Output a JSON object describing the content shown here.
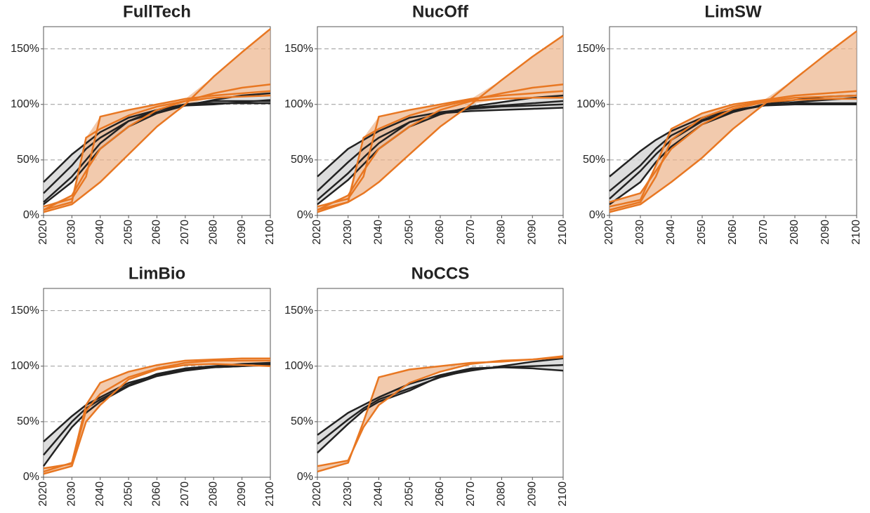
{
  "chart_data": [
    {
      "type": "line",
      "title": "FullTech",
      "x": [
        2020,
        2030,
        2035,
        2040,
        2050,
        2060,
        2070,
        2080,
        2090,
        2100
      ],
      "xlim": [
        2020,
        2100
      ],
      "xticks": [
        2020,
        2030,
        2040,
        2050,
        2060,
        2070,
        2080,
        2090,
        2100
      ],
      "ylim": [
        0,
        170
      ],
      "yticks": [
        {
          "value": 0,
          "label": "0%"
        },
        {
          "value": 50,
          "label": "50%"
        },
        {
          "value": 100,
          "label": "100%"
        },
        {
          "value": 150,
          "label": "150%"
        }
      ],
      "grid": true,
      "series": [
        {
          "color": "#222222",
          "values": [
            30,
            55,
            65,
            75,
            88,
            95,
            100,
            101,
            101,
            101
          ]
        },
        {
          "color": "#222222",
          "values": [
            20,
            45,
            60,
            70,
            85,
            93,
            99,
            100,
            102,
            104
          ]
        },
        {
          "color": "#222222",
          "values": [
            10,
            30,
            45,
            60,
            80,
            92,
            99,
            104,
            108,
            110
          ]
        },
        {
          "color": "#222222",
          "values": [
            12,
            35,
            50,
            65,
            85,
            95,
            100,
            103,
            103,
            103
          ]
        },
        {
          "color": "#e87722",
          "values": [
            5,
            12,
            70,
            78,
            90,
            98,
            103,
            110,
            115,
            118
          ]
        },
        {
          "color": "#e87722",
          "values": [
            8,
            15,
            35,
            89,
            95,
            100,
            105,
            108,
            110,
            112
          ]
        },
        {
          "color": "#e87722",
          "values": [
            3,
            10,
            20,
            30,
            55,
            80,
            100,
            125,
            147,
            168
          ]
        },
        {
          "color": "#e87722",
          "values": [
            5,
            18,
            40,
            60,
            80,
            95,
            103,
            106,
            107,
            108
          ]
        }
      ]
    },
    {
      "type": "line",
      "title": "NucOff",
      "x": [
        2020,
        2030,
        2035,
        2040,
        2050,
        2060,
        2070,
        2080,
        2090,
        2100
      ],
      "xlim": [
        2020,
        2100
      ],
      "xticks": [
        2020,
        2030,
        2040,
        2050,
        2060,
        2070,
        2080,
        2090,
        2100
      ],
      "ylim": [
        0,
        170
      ],
      "yticks": [
        {
          "value": 0,
          "label": "0%"
        },
        {
          "value": 50,
          "label": "50%"
        },
        {
          "value": 100,
          "label": "100%"
        },
        {
          "value": 150,
          "label": "150%"
        }
      ],
      "grid": true,
      "series": [
        {
          "color": "#222222",
          "values": [
            35,
            60,
            68,
            76,
            88,
            93,
            96,
            98,
            99,
            100
          ]
        },
        {
          "color": "#222222",
          "values": [
            22,
            48,
            60,
            70,
            84,
            92,
            97,
            99,
            101,
            103
          ]
        },
        {
          "color": "#222222",
          "values": [
            10,
            32,
            46,
            60,
            80,
            91,
            98,
            102,
            106,
            108
          ]
        },
        {
          "color": "#222222",
          "values": [
            14,
            38,
            52,
            65,
            84,
            92,
            94,
            95,
            96,
            97
          ]
        },
        {
          "color": "#e87722",
          "values": [
            5,
            12,
            70,
            78,
            90,
            98,
            104,
            110,
            115,
            118
          ]
        },
        {
          "color": "#e87722",
          "values": [
            8,
            15,
            35,
            89,
            95,
            100,
            105,
            108,
            110,
            112
          ]
        },
        {
          "color": "#e87722",
          "values": [
            3,
            12,
            20,
            30,
            55,
            80,
            100,
            122,
            143,
            162
          ]
        },
        {
          "color": "#e87722",
          "values": [
            5,
            18,
            40,
            60,
            80,
            95,
            103,
            105,
            106,
            106
          ]
        }
      ]
    },
    {
      "type": "line",
      "title": "LimSW",
      "x": [
        2020,
        2030,
        2035,
        2040,
        2050,
        2060,
        2070,
        2080,
        2090,
        2100
      ],
      "xlim": [
        2020,
        2100
      ],
      "xticks": [
        2020,
        2030,
        2040,
        2050,
        2060,
        2070,
        2080,
        2090,
        2100
      ],
      "ylim": [
        0,
        170
      ],
      "yticks": [
        {
          "value": 0,
          "label": "0%"
        },
        {
          "value": 50,
          "label": "50%"
        },
        {
          "value": 100,
          "label": "100%"
        },
        {
          "value": 150,
          "label": "150%"
        }
      ],
      "grid": true,
      "series": [
        {
          "color": "#222222",
          "values": [
            35,
            58,
            68,
            76,
            88,
            95,
            99,
            101,
            101,
            101
          ]
        },
        {
          "color": "#222222",
          "values": [
            22,
            45,
            60,
            72,
            86,
            94,
            99,
            102,
            104,
            106
          ]
        },
        {
          "color": "#222222",
          "values": [
            10,
            30,
            48,
            62,
            82,
            93,
            100,
            104,
            107,
            108
          ]
        },
        {
          "color": "#222222",
          "values": [
            15,
            40,
            55,
            68,
            85,
            94,
            99,
            100,
            100,
            100
          ]
        },
        {
          "color": "#e87722",
          "values": [
            8,
            14,
            45,
            78,
            92,
            100,
            104,
            108,
            110,
            112
          ]
        },
        {
          "color": "#e87722",
          "values": [
            5,
            12,
            35,
            68,
            88,
            98,
            103,
            106,
            107,
            108
          ]
        },
        {
          "color": "#e87722",
          "values": [
            3,
            10,
            20,
            30,
            52,
            78,
            100,
            123,
            145,
            166
          ]
        },
        {
          "color": "#e87722",
          "values": [
            12,
            20,
            40,
            60,
            82,
            96,
            102,
            104,
            105,
            105
          ]
        }
      ]
    },
    {
      "type": "line",
      "title": "LimBio",
      "x": [
        2020,
        2030,
        2035,
        2040,
        2050,
        2060,
        2070,
        2080,
        2090,
        2100
      ],
      "xlim": [
        2020,
        2100
      ],
      "xticks": [
        2020,
        2030,
        2040,
        2050,
        2060,
        2070,
        2080,
        2090,
        2100
      ],
      "ylim": [
        0,
        170
      ],
      "yticks": [
        {
          "value": 0,
          "label": "0%"
        },
        {
          "value": 50,
          "label": "50%"
        },
        {
          "value": 100,
          "label": "100%"
        },
        {
          "value": 150,
          "label": "150%"
        }
      ],
      "grid": true,
      "series": [
        {
          "color": "#222222",
          "values": [
            32,
            55,
            65,
            72,
            85,
            92,
            97,
            99,
            100,
            101
          ]
        },
        {
          "color": "#222222",
          "values": [
            20,
            50,
            62,
            70,
            83,
            93,
            98,
            100,
            102,
            103
          ]
        },
        {
          "color": "#222222",
          "values": [
            10,
            45,
            58,
            68,
            82,
            91,
            96,
            99,
            100,
            102
          ]
        },
        {
          "color": "#e87722",
          "values": [
            5,
            13,
            65,
            85,
            95,
            101,
            105,
            106,
            107,
            107
          ]
        },
        {
          "color": "#e87722",
          "values": [
            8,
            12,
            60,
            75,
            90,
            98,
            103,
            105,
            105,
            105
          ]
        },
        {
          "color": "#e87722",
          "values": [
            3,
            10,
            50,
            65,
            88,
            97,
            101,
            102,
            101,
            100
          ]
        }
      ]
    },
    {
      "type": "line",
      "title": "NoCCS",
      "x": [
        2020,
        2030,
        2035,
        2040,
        2050,
        2060,
        2070,
        2080,
        2090,
        2100
      ],
      "xlim": [
        2020,
        2100
      ],
      "xticks": [
        2020,
        2030,
        2040,
        2050,
        2060,
        2070,
        2080,
        2090,
        2100
      ],
      "ylim": [
        0,
        170
      ],
      "yticks": [
        {
          "value": 0,
          "label": "0%"
        },
        {
          "value": 50,
          "label": "50%"
        },
        {
          "value": 100,
          "label": "100%"
        },
        {
          "value": 150,
          "label": "150%"
        }
      ],
      "grid": true,
      "series": [
        {
          "color": "#222222",
          "values": [
            38,
            58,
            65,
            72,
            84,
            92,
            98,
            99,
            100,
            101
          ]
        },
        {
          "color": "#222222",
          "values": [
            30,
            52,
            62,
            70,
            80,
            90,
            97,
            99,
            98,
            96
          ]
        },
        {
          "color": "#222222",
          "values": [
            22,
            48,
            60,
            68,
            78,
            91,
            96,
            100,
            104,
            107
          ]
        },
        {
          "color": "#e87722",
          "values": [
            5,
            13,
            50,
            90,
            97,
            100,
            103,
            104,
            106,
            109
          ]
        },
        {
          "color": "#e87722",
          "values": [
            10,
            15,
            45,
            65,
            85,
            95,
            102,
            105,
            106,
            108
          ]
        }
      ]
    }
  ]
}
